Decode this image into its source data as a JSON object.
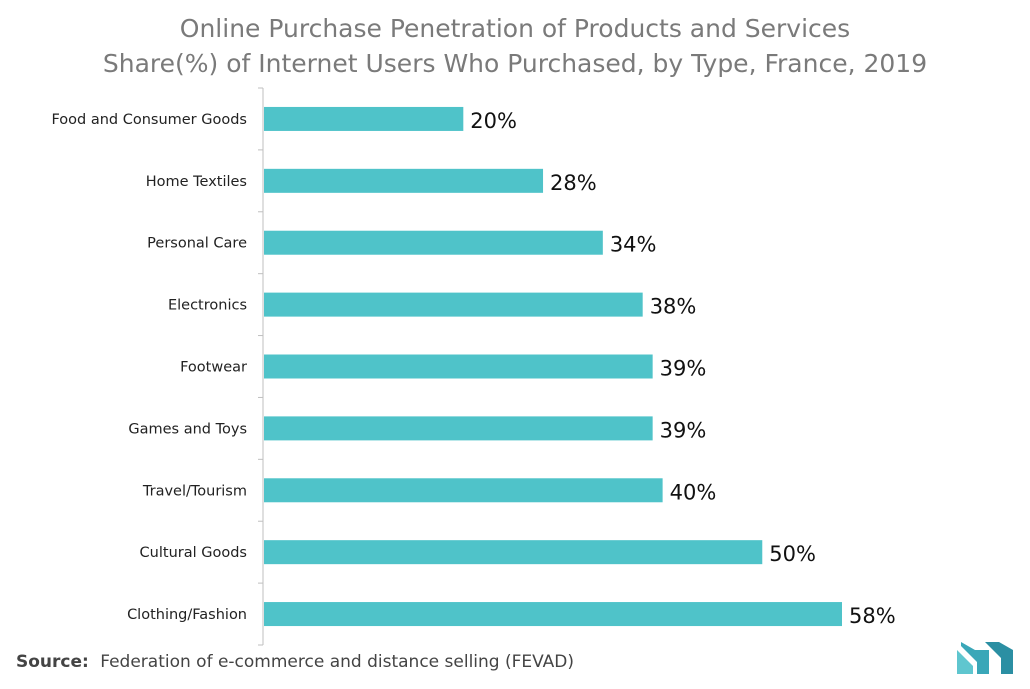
{
  "chart_data": {
    "type": "bar",
    "orientation": "horizontal",
    "title": "Online Purchase Penetration of Products and Services",
    "subtitle": "Share(%) of Internet Users Who Purchased, by Type, France, 2019",
    "categories": [
      "Food and Consumer Goods",
      "Home Textiles",
      "Personal Care",
      "Electronics",
      "Footwear",
      "Games and Toys",
      "Travel/Tourism",
      "Cultural Goods",
      "Clothing/Fashion"
    ],
    "values": [
      20,
      28,
      34,
      38,
      39,
      39,
      40,
      50,
      58
    ],
    "value_labels": [
      "20%",
      "28%",
      "34%",
      "38%",
      "39%",
      "39%",
      "40%",
      "50%",
      "58%"
    ],
    "unit": "%",
    "xlim": [
      0,
      60
    ],
    "grid": false,
    "bar_color": "#4fc3c9"
  },
  "source": {
    "label": "Source:",
    "text": "Federation of e-commerce and distance selling (FEVAD)"
  },
  "logo": {
    "icon": "mordor-intelligence-logo-icon",
    "color": "#4fb8c8"
  }
}
